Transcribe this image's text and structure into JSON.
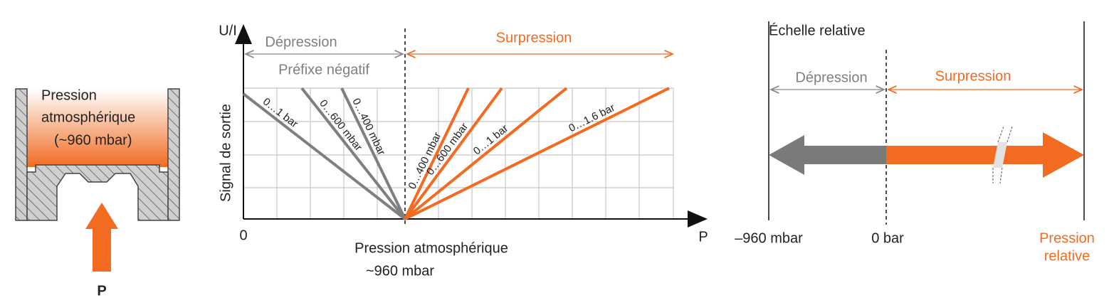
{
  "left_panel": {
    "label_lines": [
      "Pression",
      "atmosphérique",
      "(~960 mbar)"
    ],
    "force_label": "P"
  },
  "middle_chart": {
    "y_axis_label": "U/I",
    "y_axis_title": "Signal de sortie",
    "x_origin_label": "0",
    "x_axis_label": "P",
    "depression": {
      "label": "Dépression",
      "note": "Préfixe négatif"
    },
    "surpression": {
      "label": "Surpression"
    },
    "reference_lines": [
      "Pression atmosphérique",
      "~960 mbar"
    ],
    "negative_ranges": [
      "0…1 bar",
      "0…600 mbar",
      "0…400 mbar"
    ],
    "positive_ranges": [
      "0…400 mbar",
      "0…600 mbar",
      "0…1 bar",
      "0…1.6 bar"
    ]
  },
  "right_panel": {
    "title": "Échelle relative",
    "depression": "Dépression",
    "surpression": "Surpression",
    "min_label": "–960 mbar",
    "zero_label": "0 bar",
    "end_label": [
      "Pression",
      "relative"
    ]
  }
}
